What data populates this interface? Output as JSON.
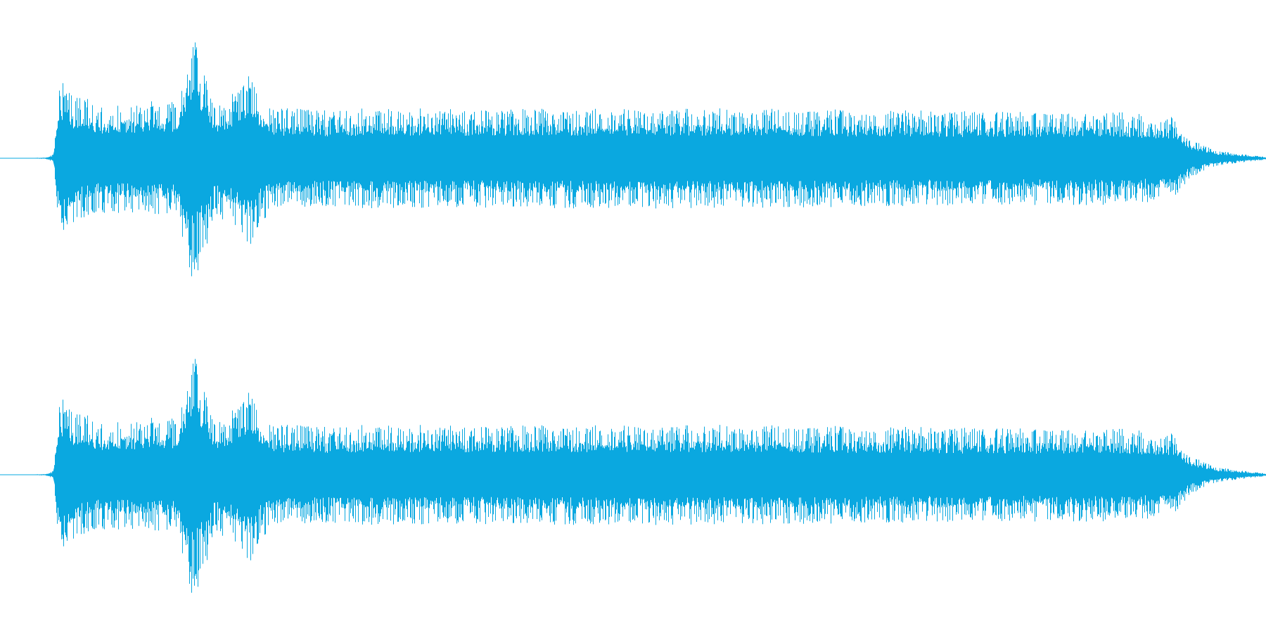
{
  "waveform": {
    "color": "#0AA8E0",
    "background": "#FFFFFF",
    "channel_count": 2,
    "channels": [
      {
        "id": "left"
      },
      {
        "id": "right"
      }
    ],
    "envelope": [
      [
        0.0,
        0.0
      ],
      [
        0.035,
        0.005
      ],
      [
        0.042,
        0.03
      ],
      [
        0.047,
        0.63
      ],
      [
        0.06,
        0.5
      ],
      [
        0.08,
        0.43
      ],
      [
        0.1,
        0.44
      ],
      [
        0.12,
        0.45
      ],
      [
        0.14,
        0.46
      ],
      [
        0.145,
        0.78
      ],
      [
        0.152,
        0.99
      ],
      [
        0.16,
        0.8
      ],
      [
        0.17,
        0.45
      ],
      [
        0.185,
        0.54
      ],
      [
        0.198,
        0.7
      ],
      [
        0.206,
        0.52
      ],
      [
        0.215,
        0.4
      ],
      [
        0.26,
        0.38
      ],
      [
        0.3,
        0.4
      ],
      [
        0.38,
        0.39
      ],
      [
        0.5,
        0.4
      ],
      [
        0.62,
        0.39
      ],
      [
        0.7,
        0.38
      ],
      [
        0.8,
        0.37
      ],
      [
        0.88,
        0.37
      ],
      [
        0.925,
        0.34
      ],
      [
        0.94,
        0.16
      ],
      [
        0.96,
        0.06
      ],
      [
        1.0,
        0.01
      ]
    ]
  }
}
